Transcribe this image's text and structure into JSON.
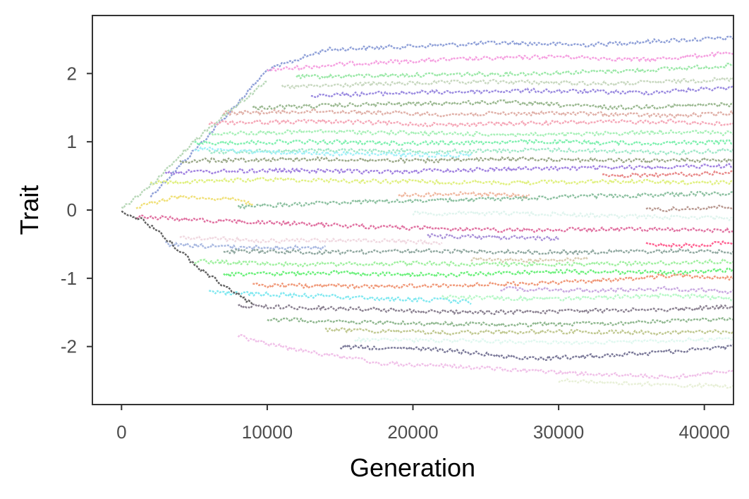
{
  "chart_data": {
    "type": "line",
    "title": "",
    "xlabel": "Generation",
    "ylabel": "Trait",
    "xlim": [
      -2000,
      42000
    ],
    "ylim": [
      -2.85,
      2.85
    ],
    "x_ticks": [
      0,
      10000,
      20000,
      30000,
      40000
    ],
    "x_tick_labels": [
      "0",
      "10000",
      "20000",
      "30000",
      "40000"
    ],
    "y_ticks": [
      -2,
      -1,
      0,
      1,
      2
    ],
    "y_tick_labels": [
      "-2",
      "-1",
      "0",
      "1",
      "2"
    ],
    "grid": false,
    "legend": "none",
    "series": [
      {
        "color": "#8fa0d8",
        "values": [
          [
            2000,
            0.2
          ],
          [
            6000,
            1.1
          ],
          [
            10000,
            2.05
          ],
          [
            14000,
            2.35
          ],
          [
            20000,
            2.4
          ],
          [
            26000,
            2.45
          ],
          [
            32000,
            2.42
          ],
          [
            37000,
            2.48
          ],
          [
            42000,
            2.52
          ]
        ]
      },
      {
        "color": "#f5a0e0",
        "values": [
          [
            10000,
            2.05
          ],
          [
            16000,
            2.15
          ],
          [
            22000,
            2.2
          ],
          [
            30000,
            2.25
          ],
          [
            36000,
            2.2
          ],
          [
            42000,
            2.3
          ]
        ]
      },
      {
        "color": "#9be8a8",
        "values": [
          [
            12000,
            1.95
          ],
          [
            20000,
            1.98
          ],
          [
            28000,
            2.0
          ],
          [
            36000,
            2.05
          ],
          [
            42000,
            2.12
          ]
        ]
      },
      {
        "color": "#c8d8c0",
        "values": [
          [
            11000,
            1.8
          ],
          [
            18000,
            1.85
          ],
          [
            26000,
            1.88
          ],
          [
            34000,
            1.85
          ],
          [
            42000,
            1.92
          ]
        ]
      },
      {
        "color": "#9a8ae0",
        "values": [
          [
            13000,
            1.68
          ],
          [
            20000,
            1.72
          ],
          [
            28000,
            1.75
          ],
          [
            36000,
            1.72
          ],
          [
            42000,
            1.8
          ]
        ]
      },
      {
        "color": "#9ab890",
        "values": [
          [
            9000,
            1.5
          ],
          [
            18000,
            1.55
          ],
          [
            26000,
            1.58
          ],
          [
            34000,
            1.5
          ],
          [
            42000,
            1.55
          ]
        ]
      },
      {
        "color": "#e0b0a8",
        "values": [
          [
            7000,
            1.42
          ],
          [
            14000,
            1.45
          ],
          [
            22000,
            1.4
          ],
          [
            30000,
            1.42
          ],
          [
            38000,
            1.38
          ],
          [
            42000,
            1.42
          ]
        ]
      },
      {
        "color": "#f5a8b8",
        "values": [
          [
            6000,
            1.28
          ],
          [
            14000,
            1.3
          ],
          [
            22000,
            1.25
          ],
          [
            30000,
            1.28
          ],
          [
            38000,
            1.3
          ],
          [
            42000,
            1.25
          ]
        ]
      },
      {
        "color": "#a8f0b8",
        "values": [
          [
            6000,
            1.12
          ],
          [
            14000,
            1.15
          ],
          [
            22000,
            1.12
          ],
          [
            30000,
            1.1
          ],
          [
            38000,
            1.15
          ],
          [
            42000,
            1.12
          ]
        ]
      },
      {
        "color": "#80f0b0",
        "values": [
          [
            5000,
            0.98
          ],
          [
            12000,
            1.0
          ],
          [
            20000,
            0.98
          ],
          [
            28000,
            1.0
          ],
          [
            36000,
            0.98
          ],
          [
            42000,
            1.0
          ]
        ]
      },
      {
        "color": "#a0e8c8",
        "values": [
          [
            6000,
            0.85
          ],
          [
            14000,
            0.88
          ],
          [
            22000,
            0.86
          ],
          [
            30000,
            0.88
          ],
          [
            38000,
            0.84
          ],
          [
            42000,
            0.88
          ]
        ]
      },
      {
        "color": "#a0f0f8",
        "values": [
          [
            5000,
            0.9
          ],
          [
            10000,
            0.85
          ],
          [
            16000,
            0.82
          ],
          [
            24000,
            0.8
          ]
        ]
      },
      {
        "color": "#9aa888",
        "values": [
          [
            4000,
            0.72
          ],
          [
            12000,
            0.75
          ],
          [
            20000,
            0.72
          ],
          [
            28000,
            0.75
          ],
          [
            36000,
            0.72
          ],
          [
            42000,
            0.74
          ]
        ]
      },
      {
        "color": "#a080e0",
        "values": [
          [
            3000,
            0.55
          ],
          [
            10000,
            0.58
          ],
          [
            18000,
            0.56
          ],
          [
            26000,
            0.6
          ],
          [
            34000,
            0.62
          ],
          [
            42000,
            0.65
          ]
        ]
      },
      {
        "color": "#e88888",
        "values": [
          [
            33000,
            0.5
          ],
          [
            38000,
            0.52
          ],
          [
            42000,
            0.55
          ]
        ]
      },
      {
        "color": "#e0f080",
        "values": [
          [
            2000,
            0.4
          ],
          [
            10000,
            0.45
          ],
          [
            18000,
            0.42
          ],
          [
            26000,
            0.4
          ],
          [
            34000,
            0.42
          ],
          [
            42000,
            0.4
          ]
        ]
      },
      {
        "color": "#f0e078",
        "values": [
          [
            1000,
            0.05
          ],
          [
            4000,
            0.2
          ],
          [
            8000,
            0.15
          ],
          [
            9000,
            0.08
          ]
        ]
      },
      {
        "color": "#f0b8a0",
        "values": [
          [
            19000,
            0.22
          ],
          [
            24000,
            0.24
          ],
          [
            28000,
            0.2
          ]
        ]
      },
      {
        "color": "#8cc0a0",
        "values": [
          [
            8000,
            0.05
          ],
          [
            16000,
            0.12
          ],
          [
            24000,
            0.15
          ],
          [
            32000,
            0.2
          ],
          [
            42000,
            0.25
          ]
        ]
      },
      {
        "color": "#b89890",
        "values": [
          [
            36000,
            0.0
          ],
          [
            39000,
            0.02
          ],
          [
            42000,
            0.05
          ]
        ]
      },
      {
        "color": "#e0f4ee",
        "values": [
          [
            20000,
            -0.05
          ],
          [
            28000,
            -0.05
          ],
          [
            36000,
            -0.1
          ],
          [
            42000,
            -0.12
          ]
        ]
      },
      {
        "color": "#e070a0",
        "values": [
          [
            1000,
            -0.1
          ],
          [
            6000,
            -0.15
          ],
          [
            12000,
            -0.2
          ],
          [
            18000,
            -0.25
          ],
          [
            26000,
            -0.3
          ],
          [
            34000,
            -0.28
          ],
          [
            42000,
            -0.3
          ]
        ]
      },
      {
        "color": "#a890d8",
        "values": [
          [
            21000,
            -0.38
          ],
          [
            26000,
            -0.4
          ],
          [
            30000,
            -0.42
          ]
        ]
      },
      {
        "color": "#ff6090",
        "values": [
          [
            36000,
            -0.5
          ],
          [
            39000,
            -0.52
          ],
          [
            42000,
            -0.48
          ]
        ]
      },
      {
        "color": "#f0d8e0",
        "values": [
          [
            4000,
            -0.4
          ],
          [
            10000,
            -0.45
          ],
          [
            16000,
            -0.44
          ],
          [
            22000,
            -0.48
          ]
        ]
      },
      {
        "color": "#a8b8e0",
        "values": [
          [
            3000,
            -0.5
          ],
          [
            8000,
            -0.55
          ],
          [
            14000,
            -0.55
          ]
        ]
      },
      {
        "color": "#90a8a0",
        "values": [
          [
            7000,
            -0.6
          ],
          [
            14000,
            -0.62
          ],
          [
            22000,
            -0.6
          ],
          [
            30000,
            -0.62
          ],
          [
            38000,
            -0.6
          ],
          [
            42000,
            -0.62
          ]
        ]
      },
      {
        "color": "#d8ccb0",
        "values": [
          [
            24000,
            -0.72
          ],
          [
            28000,
            -0.74
          ],
          [
            32000,
            -0.72
          ]
        ]
      },
      {
        "color": "#a0f0a0",
        "values": [
          [
            5000,
            -0.75
          ],
          [
            12000,
            -0.8
          ],
          [
            20000,
            -0.78
          ],
          [
            28000,
            -0.8
          ],
          [
            36000,
            -0.78
          ],
          [
            42000,
            -0.75
          ]
        ]
      },
      {
        "color": "#6af07a",
        "values": [
          [
            7000,
            -0.95
          ],
          [
            14000,
            -0.92
          ],
          [
            22000,
            -0.95
          ],
          [
            30000,
            -0.9
          ],
          [
            38000,
            -0.92
          ],
          [
            42000,
            -0.88
          ]
        ]
      },
      {
        "color": "#f09878",
        "values": [
          [
            9000,
            -1.1
          ],
          [
            16000,
            -1.12
          ],
          [
            24000,
            -1.1
          ],
          [
            32000,
            -1.05
          ],
          [
            38000,
            -0.95
          ],
          [
            42000,
            -1.0
          ]
        ]
      },
      {
        "color": "#c8a8e0",
        "values": [
          [
            26000,
            -1.15
          ],
          [
            32000,
            -1.18
          ],
          [
            38000,
            -1.15
          ],
          [
            42000,
            -1.2
          ]
        ]
      },
      {
        "color": "#80e8f0",
        "values": [
          [
            6000,
            -1.2
          ],
          [
            12000,
            -1.25
          ],
          [
            18000,
            -1.3
          ],
          [
            22000,
            -1.32
          ],
          [
            24000,
            -1.35
          ]
        ]
      },
      {
        "color": "#b8f8c8",
        "values": [
          [
            22000,
            -1.28
          ],
          [
            30000,
            -1.3
          ],
          [
            38000,
            -1.25
          ],
          [
            42000,
            -1.3
          ]
        ]
      },
      {
        "color": "#8a8090",
        "values": [
          [
            8000,
            -1.4
          ],
          [
            16000,
            -1.45
          ],
          [
            24000,
            -1.5
          ],
          [
            32000,
            -1.48
          ],
          [
            38000,
            -1.45
          ],
          [
            42000,
            -1.42
          ]
        ]
      },
      {
        "color": "#90b890",
        "values": [
          [
            10000,
            -1.6
          ],
          [
            18000,
            -1.65
          ],
          [
            26000,
            -1.68
          ],
          [
            34000,
            -1.66
          ],
          [
            42000,
            -1.6
          ]
        ]
      },
      {
        "color": "#c0c890",
        "values": [
          [
            14000,
            -1.75
          ],
          [
            22000,
            -1.8
          ],
          [
            30000,
            -1.78
          ],
          [
            38000,
            -1.8
          ],
          [
            42000,
            -1.78
          ]
        ]
      },
      {
        "color": "#e0f8f0",
        "values": [
          [
            16000,
            -1.9
          ],
          [
            24000,
            -1.92
          ],
          [
            32000,
            -1.95
          ],
          [
            42000,
            -1.88
          ]
        ]
      },
      {
        "color": "#7a7898",
        "values": [
          [
            15000,
            -2.0
          ],
          [
            22000,
            -2.05
          ],
          [
            28000,
            -2.18
          ],
          [
            36000,
            -2.1
          ],
          [
            42000,
            -2.0
          ]
        ]
      },
      {
        "color": "#f0c0e8",
        "values": [
          [
            8000,
            -1.85
          ],
          [
            12000,
            -2.05
          ],
          [
            18000,
            -2.25
          ],
          [
            24000,
            -2.3
          ],
          [
            32000,
            -2.4
          ],
          [
            38000,
            -2.45
          ],
          [
            42000,
            -2.35
          ]
        ]
      },
      {
        "color": "#e8f0d8",
        "values": [
          [
            30000,
            -2.5
          ],
          [
            36000,
            -2.55
          ],
          [
            42000,
            -2.58
          ]
        ]
      },
      {
        "color": "#606060",
        "values": [
          [
            0,
            -0.02
          ],
          [
            1500,
            -0.15
          ],
          [
            3000,
            -0.4
          ],
          [
            5000,
            -0.8
          ],
          [
            7000,
            -1.1
          ],
          [
            9000,
            -1.38
          ]
        ]
      },
      {
        "color": "#b8d8b8",
        "values": [
          [
            0,
            0.02
          ],
          [
            2000,
            0.35
          ],
          [
            4000,
            0.8
          ],
          [
            6000,
            1.2
          ],
          [
            8000,
            1.55
          ],
          [
            10000,
            1.9
          ]
        ]
      }
    ]
  }
}
